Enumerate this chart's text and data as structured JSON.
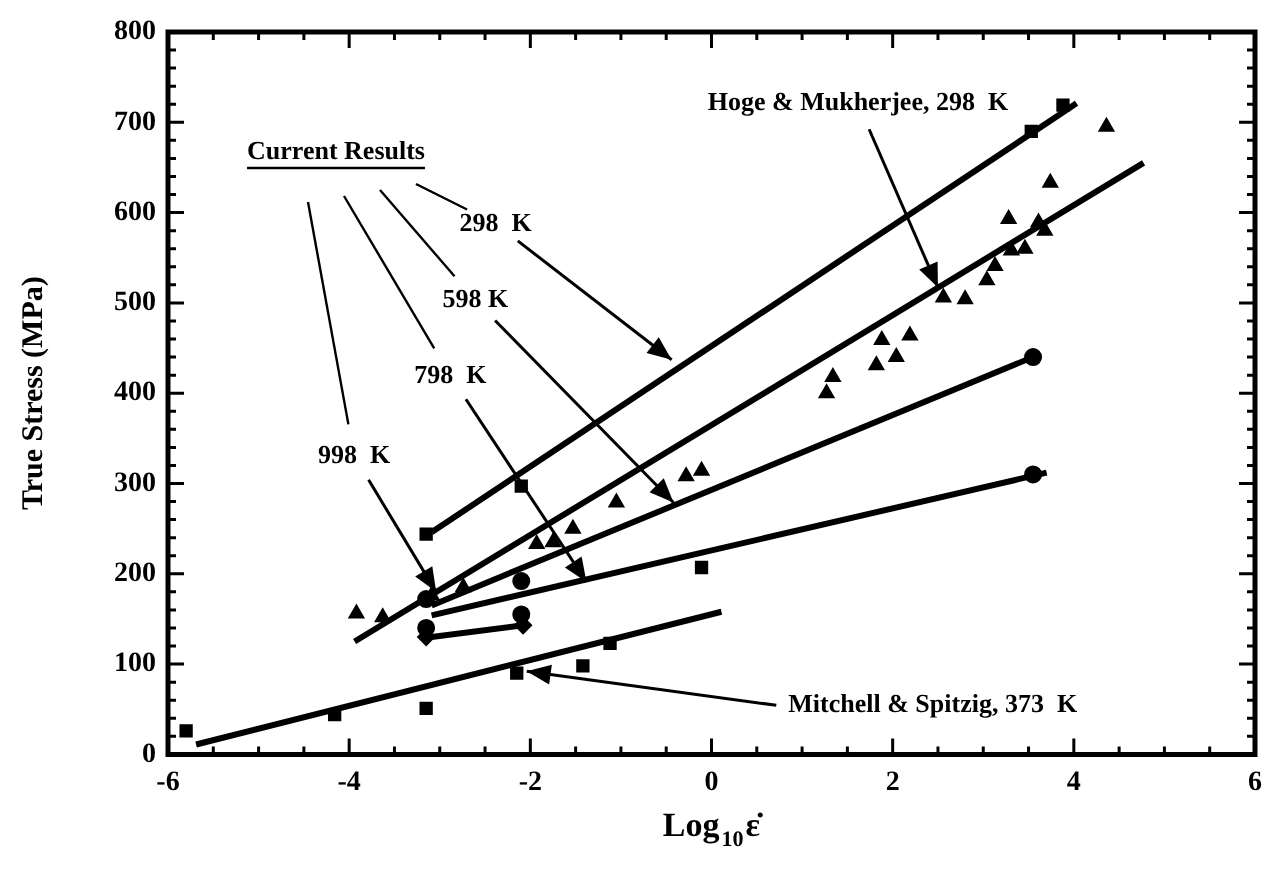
{
  "chart_data": {
    "type": "scatter",
    "xlabel": "Log$_{10}$ε̇",
    "ylabel": "True Stress (MPa)",
    "xlim": [
      -6,
      6
    ],
    "ylim": [
      0,
      800
    ],
    "xticks": [
      -6,
      {
        "value": -5.5,
        "label": null
      },
      {
        "value": -5,
        "label": null
      },
      {
        "value": -4.5,
        "label": null
      },
      -4,
      {
        "value": -3.5,
        "label": null
      },
      {
        "value": -3,
        "label": null
      },
      {
        "value": -2.5,
        "label": null
      },
      -2,
      {
        "value": -1.5,
        "label": null
      },
      {
        "value": -1,
        "label": null
      },
      {
        "value": -0.5,
        "label": null
      },
      0,
      {
        "value": 0.5,
        "label": null
      },
      {
        "value": 1,
        "label": null
      },
      {
        "value": 1.5,
        "label": null
      },
      2,
      {
        "value": 2.5,
        "label": null
      },
      {
        "value": 3,
        "label": null
      },
      {
        "value": 3.5,
        "label": null
      },
      4,
      {
        "value": 4.5,
        "label": null
      },
      {
        "value": 5,
        "label": null
      },
      {
        "value": 5.5,
        "label": null
      },
      6
    ],
    "yticks": [
      0,
      {
        "value": 20,
        "label": null
      },
      {
        "value": 40,
        "label": null
      },
      {
        "value": 60,
        "label": null
      },
      {
        "value": 80,
        "label": null
      },
      100,
      {
        "value": 120,
        "label": null
      },
      {
        "value": 140,
        "label": null
      },
      {
        "value": 160,
        "label": null
      },
      {
        "value": 180,
        "label": null
      },
      200,
      {
        "value": 220,
        "label": null
      },
      {
        "value": 240,
        "label": null
      },
      {
        "value": 260,
        "label": null
      },
      {
        "value": 280,
        "label": null
      },
      300,
      {
        "value": 320,
        "label": null
      },
      {
        "value": 340,
        "label": null
      },
      {
        "value": 360,
        "label": null
      },
      {
        "value": 380,
        "label": null
      },
      400,
      {
        "value": 420,
        "label": null
      },
      {
        "value": 440,
        "label": null
      },
      {
        "value": 460,
        "label": null
      },
      {
        "value": 480,
        "label": null
      },
      500,
      {
        "value": 520,
        "label": null
      },
      {
        "value": 540,
        "label": null
      },
      {
        "value": 560,
        "label": null
      },
      {
        "value": 580,
        "label": null
      },
      600,
      {
        "value": 620,
        "label": null
      },
      {
        "value": 640,
        "label": null
      },
      {
        "value": 660,
        "label": null
      },
      {
        "value": 680,
        "label": null
      },
      700,
      {
        "value": 720,
        "label": null
      },
      {
        "value": 740,
        "label": null
      },
      {
        "value": 760,
        "label": null
      },
      {
        "value": 780,
        "label": null
      },
      800
    ],
    "grid": false,
    "legend": false,
    "series": [
      {
        "marker": "triangle",
        "color": "#000000",
        "x": [
          -3.92,
          -3.63,
          -3.09,
          -2.74,
          -1.93,
          -1.75,
          -1.53,
          -1.05,
          -0.28,
          -0.11,
          1.27,
          1.34,
          1.82,
          1.88,
          2.04,
          2.19,
          2.56,
          2.8,
          3.04,
          3.13,
          3.28,
          3.31,
          3.46,
          3.61,
          3.68,
          3.74,
          4.36
        ],
        "values": [
          156,
          152,
          176,
          185,
          233,
          235,
          250,
          279,
          308,
          314,
          400,
          418,
          431,
          459,
          440,
          464,
          506,
          504,
          525,
          541,
          593,
          558,
          560,
          589,
          580,
          633,
          695
        ]
      },
      {
        "type": "line",
        "marker": "none",
        "color": "#000000",
        "x": [
          -3.94,
          4.77
        ],
        "values": [
          125,
          655
        ]
      },
      {
        "marker": "square",
        "color": "#000000",
        "x": [
          -3.15,
          -2.1,
          3.53,
          3.88
        ],
        "values": [
          244,
          297,
          690,
          719
        ]
      },
      {
        "type": "line",
        "marker": "none",
        "color": "#000000",
        "x": [
          -3.09,
          4.03
        ],
        "values": [
          246,
          721
        ]
      },
      {
        "marker": "circle",
        "color": "#000000",
        "x": [
          -3.15,
          -2.1,
          3.55
        ],
        "values": [
          172,
          192,
          440
        ]
      },
      {
        "type": "line",
        "marker": "none",
        "color": "#000000",
        "x": [
          -3.09,
          3.55
        ],
        "values": [
          165,
          440
        ]
      },
      {
        "marker": "circle",
        "color": "#000000",
        "x": [
          -3.15,
          -2.1,
          3.55
        ],
        "values": [
          140,
          155,
          310
        ]
      },
      {
        "type": "line",
        "marker": "none",
        "color": "#000000",
        "x": [
          -3.09,
          3.7
        ],
        "values": [
          154,
          312
        ]
      },
      {
        "marker": "diamond",
        "color": "#000000",
        "x": [
          -3.15,
          -2.08
        ],
        "values": [
          130,
          143
        ]
      },
      {
        "type": "line",
        "marker": "none",
        "color": "#000000",
        "x": [
          -3.09,
          -2.08
        ],
        "values": [
          130,
          143
        ]
      },
      {
        "marker": "square",
        "color": "#000000",
        "x": [
          -5.8,
          -4.16,
          -3.15,
          -2.15,
          -1.42,
          -1.12,
          -0.11
        ],
        "values": [
          26,
          44,
          51,
          90,
          98,
          123,
          207
        ]
      },
      {
        "type": "line",
        "marker": "none",
        "color": "#000000",
        "x": [
          -5.69,
          0.11
        ],
        "values": [
          11,
          158
        ]
      }
    ],
    "annotations": [
      "Current Results",
      {
        "text": "298  K",
        "x": -0.44,
        "y": 437
      },
      {
        "text": "598 K",
        "x": -0.42,
        "y": 279
      },
      {
        "text": "798  K",
        "x": -1.38,
        "y": 191
      },
      {
        "text": "998  K",
        "x": -3.04,
        "y": 180
      },
      {
        "text": "Hoge & Mukherjee, 298  K",
        "x": 2.5,
        "y": 517
      },
      {
        "text": "Mitchell & Spitzig, 373  K",
        "x": -2.04,
        "y": 92
      }
    ]
  }
}
